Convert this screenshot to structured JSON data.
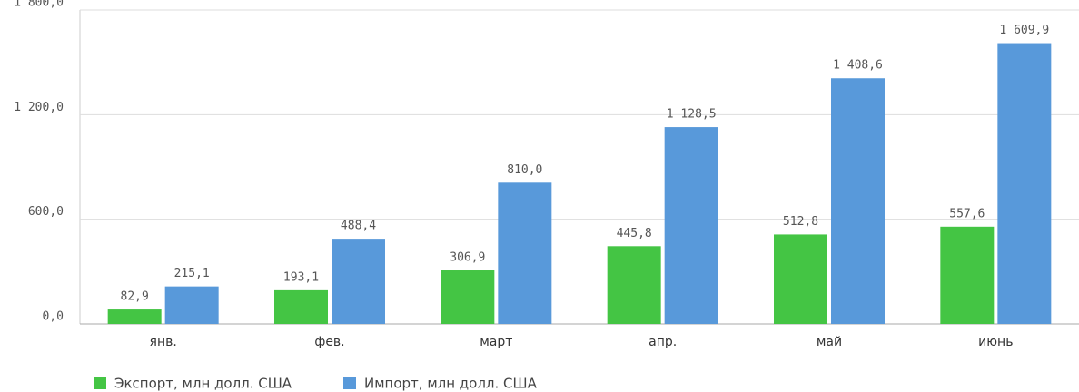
{
  "chart_data": {
    "type": "bar",
    "categories": [
      "янв.",
      "фев.",
      "март",
      "апр.",
      "май",
      "июнь"
    ],
    "series": [
      {
        "name": "Экспорт, млн долл. США",
        "color": "#44c544",
        "values": [
          82.9,
          193.1,
          306.9,
          445.8,
          512.8,
          557.6
        ],
        "value_labels": [
          "82,9",
          "193,1",
          "306,9",
          "445,8",
          "512,8",
          "557,6"
        ]
      },
      {
        "name": "Импорт, млн долл. США",
        "color": "#5899da",
        "values": [
          215.1,
          488.4,
          810.0,
          1128.5,
          1408.6,
          1609.9
        ],
        "value_labels": [
          "215,1",
          "488,4",
          "810,0",
          "1 128,5",
          "1 408,6",
          "1 609,9"
        ]
      }
    ],
    "ylim": [
      0,
      1800
    ],
    "yticks": [
      {
        "value": 0,
        "label": "0,0"
      },
      {
        "value": 600,
        "label": "600,0"
      },
      {
        "value": 1200,
        "label": "1 200,0"
      },
      {
        "value": 1800,
        "label": "1 800,0"
      }
    ],
    "grid": true,
    "legend": "bottom-left"
  }
}
